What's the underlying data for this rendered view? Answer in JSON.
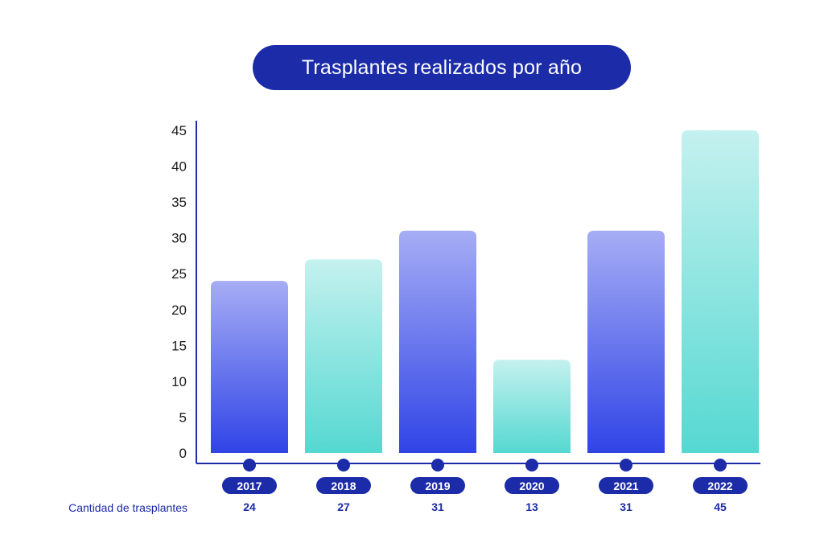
{
  "chart_data": {
    "type": "bar",
    "title": "Trasplantes realizados por año",
    "categories": [
      "2017",
      "2018",
      "2019",
      "2020",
      "2021",
      "2022"
    ],
    "values": [
      24,
      27,
      31,
      13,
      31,
      45
    ],
    "value_labels": [
      "24",
      "27",
      "31",
      "13",
      "31",
      "45"
    ],
    "value_row_label": "Cantidad de trasplantes",
    "ylim": [
      0,
      45
    ],
    "yticks": [
      0,
      5,
      10,
      15,
      20,
      25,
      30,
      35,
      40,
      45
    ],
    "bar_styles": [
      "blue",
      "teal",
      "blue",
      "teal",
      "blue",
      "teal"
    ],
    "grid": false,
    "legend": "none"
  },
  "colors": {
    "navy": "#1c2ba8",
    "blue_top": "#a6adf5",
    "blue_bottom": "#3044e6",
    "teal_top": "#c4f1ef",
    "teal_bottom": "#55d8d1",
    "axis": "#1c2ba8",
    "label_text": "#1c2ba8"
  }
}
